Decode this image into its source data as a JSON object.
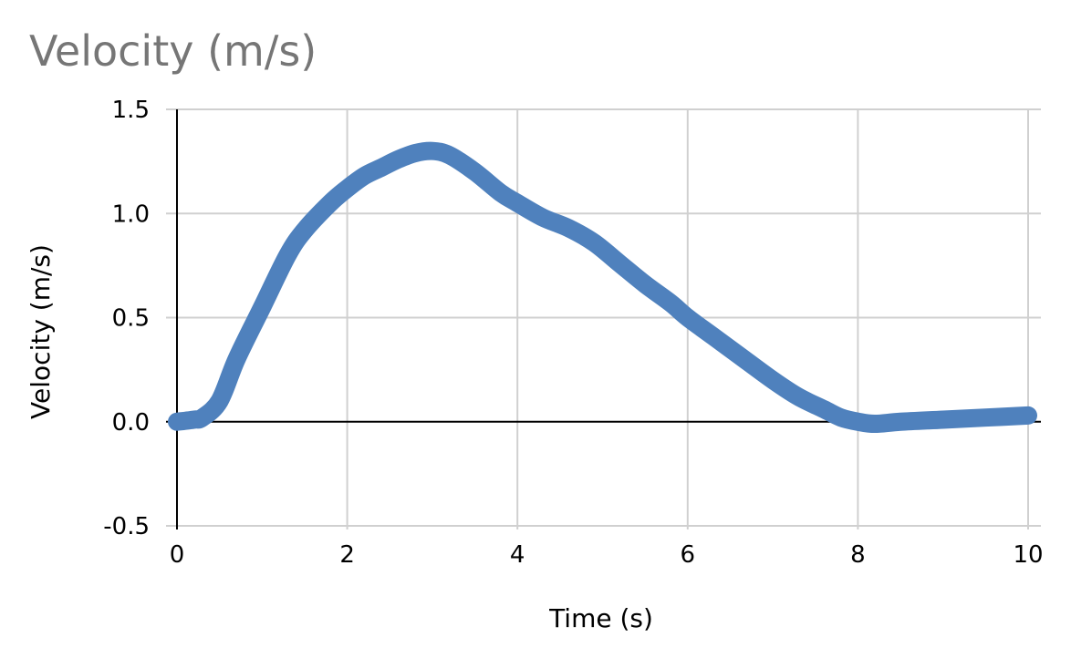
{
  "chart_data": {
    "type": "line",
    "title": "Velocity (m/s)",
    "xlabel": "Time (s)",
    "ylabel": "Velocity (m/s)",
    "xlim": [
      0,
      10
    ],
    "ylim": [
      -0.5,
      1.5
    ],
    "xticks": [
      0,
      2,
      4,
      6,
      8,
      10
    ],
    "xtick_labels": [
      "0",
      "2",
      "4",
      "6",
      "8",
      "10"
    ],
    "yticks": [
      -0.5,
      0.0,
      0.5,
      1.0,
      1.5
    ],
    "ytick_labels": [
      "-0.5",
      "0.0",
      "0.5",
      "1.0",
      "1.5"
    ],
    "grid": true,
    "legend": "none",
    "series_color": "#4f81bd",
    "series": [
      {
        "x": [
          0,
          0.2,
          0.3,
          0.5,
          0.7,
          1.0,
          1.3,
          1.5,
          1.8,
          2.0,
          2.2,
          2.4,
          2.6,
          2.8,
          3.0,
          3.2,
          3.5,
          3.8,
          4.0,
          4.3,
          4.6,
          4.9,
          5.2,
          5.5,
          5.8,
          6.0,
          6.3,
          6.6,
          7.0,
          7.3,
          7.6,
          7.8,
          8.0,
          8.2,
          8.5,
          9.0,
          9.5,
          10.0
        ],
        "y": [
          0.0,
          0.01,
          0.02,
          0.1,
          0.3,
          0.55,
          0.8,
          0.92,
          1.05,
          1.12,
          1.18,
          1.22,
          1.26,
          1.29,
          1.3,
          1.28,
          1.2,
          1.1,
          1.05,
          0.98,
          0.93,
          0.86,
          0.76,
          0.66,
          0.57,
          0.5,
          0.41,
          0.32,
          0.2,
          0.12,
          0.06,
          0.02,
          0.0,
          -0.01,
          0.0,
          0.01,
          0.02,
          0.03
        ]
      }
    ]
  }
}
